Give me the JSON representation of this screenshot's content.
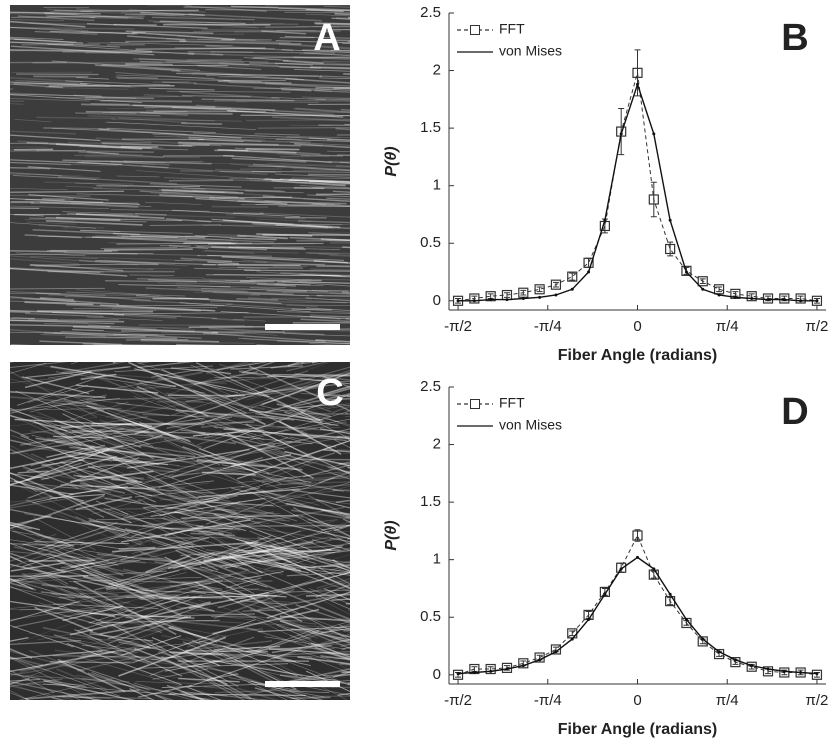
{
  "images": [
    {
      "label": "A"
    },
    {
      "label": "C"
    }
  ],
  "chart_data": [
    {
      "type": "line",
      "panel_label": "B",
      "x_label": "Fiber Angle (radians)",
      "y_label": "P(θ)",
      "x": [
        -1.5708,
        -1.428,
        -1.2852,
        -1.1424,
        -0.9996,
        -0.8568,
        -0.714,
        -0.5712,
        -0.4284,
        -0.2856,
        -0.1428,
        0,
        0.1428,
        0.2856,
        0.4284,
        0.5712,
        0.714,
        0.8568,
        0.9996,
        1.1424,
        1.2852,
        1.428,
        1.5708
      ],
      "series": [
        {
          "name": "FFT",
          "color": "#333333",
          "dashed": true,
          "marker": "square",
          "values": [
            0.0,
            0.02,
            0.04,
            0.05,
            0.07,
            0.1,
            0.14,
            0.21,
            0.33,
            0.65,
            1.47,
            1.98,
            0.88,
            0.45,
            0.26,
            0.17,
            0.1,
            0.06,
            0.04,
            0.02,
            0.02,
            0.02,
            0.0
          ],
          "errors": [
            0.02,
            0.02,
            0.02,
            0.02,
            0.02,
            0.02,
            0.02,
            0.03,
            0.04,
            0.06,
            0.2,
            0.2,
            0.15,
            0.06,
            0.03,
            0.02,
            0.02,
            0.02,
            0.02,
            0.02,
            0.02,
            0.02,
            0.02
          ]
        },
        {
          "name": "von Mises",
          "color": "#111111",
          "dashed": false,
          "marker": "none",
          "values": [
            0.0,
            0.0,
            0.01,
            0.01,
            0.02,
            0.03,
            0.05,
            0.1,
            0.25,
            0.7,
            1.45,
            1.88,
            1.45,
            0.7,
            0.25,
            0.1,
            0.05,
            0.03,
            0.02,
            0.01,
            0.01,
            0.0,
            0.0
          ]
        }
      ],
      "xlim": [
        -1.65,
        1.65
      ],
      "ylim": [
        -0.08,
        2.5
      ],
      "xticks": [
        {
          "value": -1.5708,
          "label": "-π/2"
        },
        {
          "value": -0.7854,
          "label": "-π/4"
        },
        0,
        {
          "value": 0.7854,
          "label": "π/4"
        },
        {
          "value": 1.5708,
          "label": "π/2"
        }
      ],
      "yticks": [
        0,
        0.5,
        1,
        1.5,
        2,
        2.5
      ],
      "legend": "top-left"
    },
    {
      "type": "line",
      "panel_label": "D",
      "x_label": "Fiber Angle (radians)",
      "y_label": "P(θ)",
      "x": [
        -1.5708,
        -1.428,
        -1.2852,
        -1.1424,
        -0.9996,
        -0.8568,
        -0.714,
        -0.5712,
        -0.4284,
        -0.2856,
        -0.1428,
        0,
        0.1428,
        0.2856,
        0.4284,
        0.5712,
        0.714,
        0.8568,
        0.9996,
        1.1424,
        1.2852,
        1.428,
        1.5708
      ],
      "series": [
        {
          "name": "FFT",
          "color": "#333333",
          "dashed": true,
          "marker": "square",
          "values": [
            0.0,
            0.05,
            0.05,
            0.06,
            0.1,
            0.15,
            0.22,
            0.36,
            0.52,
            0.72,
            0.93,
            1.21,
            0.87,
            0.64,
            0.45,
            0.29,
            0.18,
            0.11,
            0.07,
            0.03,
            0.02,
            0.02,
            0.0
          ],
          "errors": [
            0.02,
            0.02,
            0.02,
            0.02,
            0.02,
            0.02,
            0.02,
            0.02,
            0.03,
            0.03,
            0.04,
            0.05,
            0.03,
            0.03,
            0.02,
            0.02,
            0.02,
            0.02,
            0.02,
            0.02,
            0.02,
            0.02,
            0.02
          ]
        },
        {
          "name": "von Mises",
          "color": "#111111",
          "dashed": false,
          "marker": "none",
          "values": [
            0.01,
            0.02,
            0.03,
            0.05,
            0.08,
            0.13,
            0.2,
            0.31,
            0.48,
            0.7,
            0.92,
            1.02,
            0.92,
            0.7,
            0.48,
            0.31,
            0.2,
            0.13,
            0.08,
            0.05,
            0.03,
            0.02,
            0.01
          ]
        }
      ],
      "xlim": [
        -1.65,
        1.65
      ],
      "ylim": [
        -0.08,
        2.5
      ],
      "xticks": [
        {
          "value": -1.5708,
          "label": "-π/2"
        },
        {
          "value": -0.7854,
          "label": "-π/4"
        },
        0,
        {
          "value": 0.7854,
          "label": "π/4"
        },
        {
          "value": 1.5708,
          "label": "π/2"
        }
      ],
      "yticks": [
        0,
        0.5,
        1,
        1.5,
        2,
        2.5
      ],
      "legend": "top-left"
    }
  ]
}
